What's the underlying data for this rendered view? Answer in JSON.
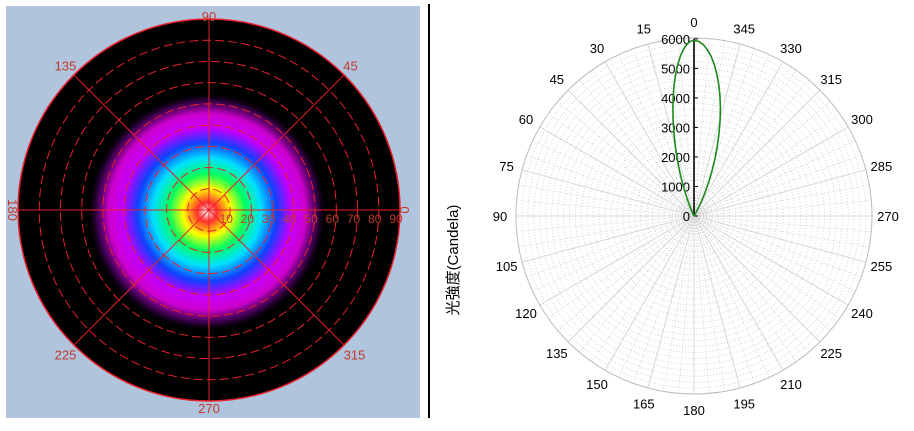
{
  "colors": {
    "panel_bg": "#b0c4de",
    "disk": "#000000",
    "grid_red": "#e8202a",
    "label_red": "#c0392b",
    "curve_green": "#1a8a1a",
    "polar_grid": "#c8c8c8"
  },
  "chart_data": [
    {
      "type": "heatmap",
      "description_kind": "polar-intensity-map",
      "angle_labels": [
        "90",
        "45",
        "0",
        "315",
        "270",
        "225",
        "180",
        "135"
      ],
      "radial_labels": [
        "10",
        "20",
        "30",
        "40",
        "50",
        "60",
        "70",
        "80",
        "90"
      ],
      "radial_range": [
        0,
        90
      ],
      "grid": true,
      "colorscale": [
        "#000000",
        "#5a0070",
        "#a000c0",
        "#ff00ff",
        "#0000ff",
        "#00ffff",
        "#00ff00",
        "#ffff00",
        "#ff0000",
        "#ffffff"
      ]
    },
    {
      "type": "line",
      "polar": true,
      "angle_labels": [
        "0",
        "345",
        "330",
        "315",
        "300",
        "285",
        "270",
        "255",
        "240",
        "225",
        "210",
        "195",
        "180",
        "165",
        "150",
        "135",
        "120",
        "105",
        "90",
        "75",
        "60",
        "45",
        "30",
        "15"
      ],
      "radial_ticks": [
        "0",
        "1000",
        "2000",
        "3000",
        "4000",
        "5000",
        "6000"
      ],
      "rlim": [
        0,
        6000
      ],
      "ylabel": "光強度(Candela)",
      "grid": true,
      "series": [
        {
          "theta_deg": [
            0,
            2,
            4,
            6,
            8,
            10,
            12,
            14,
            16,
            18,
            20,
            22,
            24,
            26,
            28,
            30,
            32,
            34,
            36,
            38,
            40
          ],
          "values": [
            5950,
            5920,
            5830,
            5680,
            5480,
            5230,
            4940,
            4610,
            4250,
            3860,
            3450,
            3020,
            2590,
            2160,
            1740,
            1340,
            970,
            640,
            360,
            150,
            0
          ]
        }
      ]
    }
  ]
}
